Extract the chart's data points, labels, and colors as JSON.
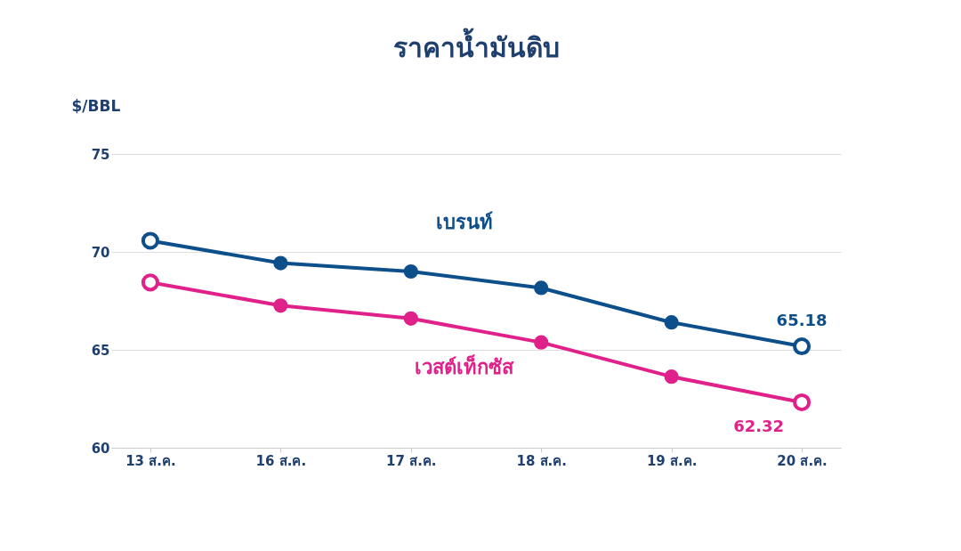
{
  "chart_data": {
    "type": "line",
    "title": "ราคาน้ำมันดิบ",
    "ylabel": "$/BBL",
    "categories": [
      "13 ส.ค.",
      "16 ส.ค.",
      "17 ส.ค.",
      "18 ส.ค.",
      "19 ส.ค.",
      "20 ส.ค."
    ],
    "series": [
      {
        "name": "เบรนท์",
        "color": "#0d4f8b",
        "values": [
          70.57,
          69.43,
          69.0,
          68.16,
          66.4,
          65.18
        ],
        "value_labels": [
          null,
          null,
          null,
          null,
          null,
          "65.18"
        ]
      },
      {
        "name": "เวสต์เท็กซัส",
        "color": "#e0218a",
        "values": [
          68.44,
          67.26,
          66.6,
          65.38,
          63.63,
          62.32
        ],
        "value_labels": [
          null,
          null,
          null,
          null,
          null,
          "62.32"
        ]
      }
    ],
    "ylim": [
      60,
      75
    ],
    "yticks": [
      60,
      65,
      70,
      75
    ],
    "grid": "y",
    "marker": "circle",
    "line_style": "solid"
  }
}
